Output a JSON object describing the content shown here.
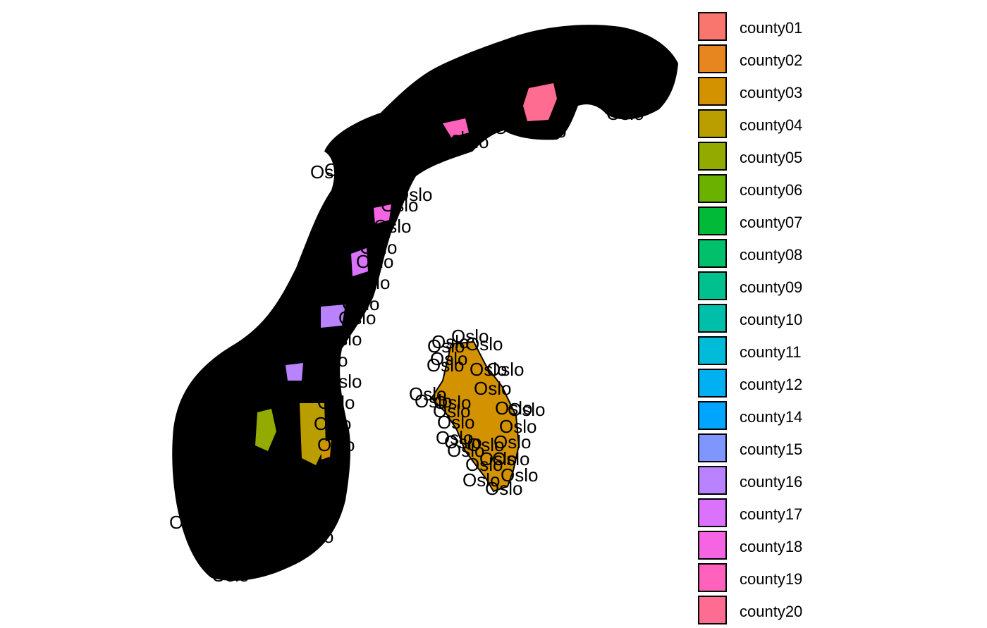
{
  "map": {
    "country_fill": "#000000",
    "label_text": "Oslo",
    "highlighted_region": {
      "name": "Oslo",
      "fill": "#D39200"
    },
    "visible_color_patches": [
      {
        "name": "county20",
        "color": "#FF6C91"
      },
      {
        "name": "county19",
        "color": "#FF62BC"
      },
      {
        "name": "county18",
        "color": "#F564E3"
      },
      {
        "name": "county17",
        "color": "#DB72FB"
      },
      {
        "name": "county16",
        "color": "#B983FF"
      },
      {
        "name": "county05",
        "color": "#93AA00"
      },
      {
        "name": "county04",
        "color": "#BA9E00"
      },
      {
        "name": "county03",
        "color": "#D39200"
      }
    ]
  },
  "legend": {
    "items": [
      {
        "label": "county01",
        "color": "#F8766D"
      },
      {
        "label": "county02",
        "color": "#E7851E"
      },
      {
        "label": "county03",
        "color": "#D39200"
      },
      {
        "label": "county04",
        "color": "#BA9E00"
      },
      {
        "label": "county05",
        "color": "#93AA00"
      },
      {
        "label": "county06",
        "color": "#6BB100"
      },
      {
        "label": "county07",
        "color": "#00BA38"
      },
      {
        "label": "county08",
        "color": "#00C06C"
      },
      {
        "label": "county09",
        "color": "#00C08D"
      },
      {
        "label": "county10",
        "color": "#00BFAA"
      },
      {
        "label": "county11",
        "color": "#00BCD8"
      },
      {
        "label": "county12",
        "color": "#00B0F0"
      },
      {
        "label": "county14",
        "color": "#00A5FF"
      },
      {
        "label": "county15",
        "color": "#7F96FF"
      },
      {
        "label": "county16",
        "color": "#B983FF"
      },
      {
        "label": "county17",
        "color": "#DB72FB"
      },
      {
        "label": "county18",
        "color": "#F564E3"
      },
      {
        "label": "county19",
        "color": "#FF62BC"
      },
      {
        "label": "county20",
        "color": "#FF6C91"
      }
    ]
  }
}
